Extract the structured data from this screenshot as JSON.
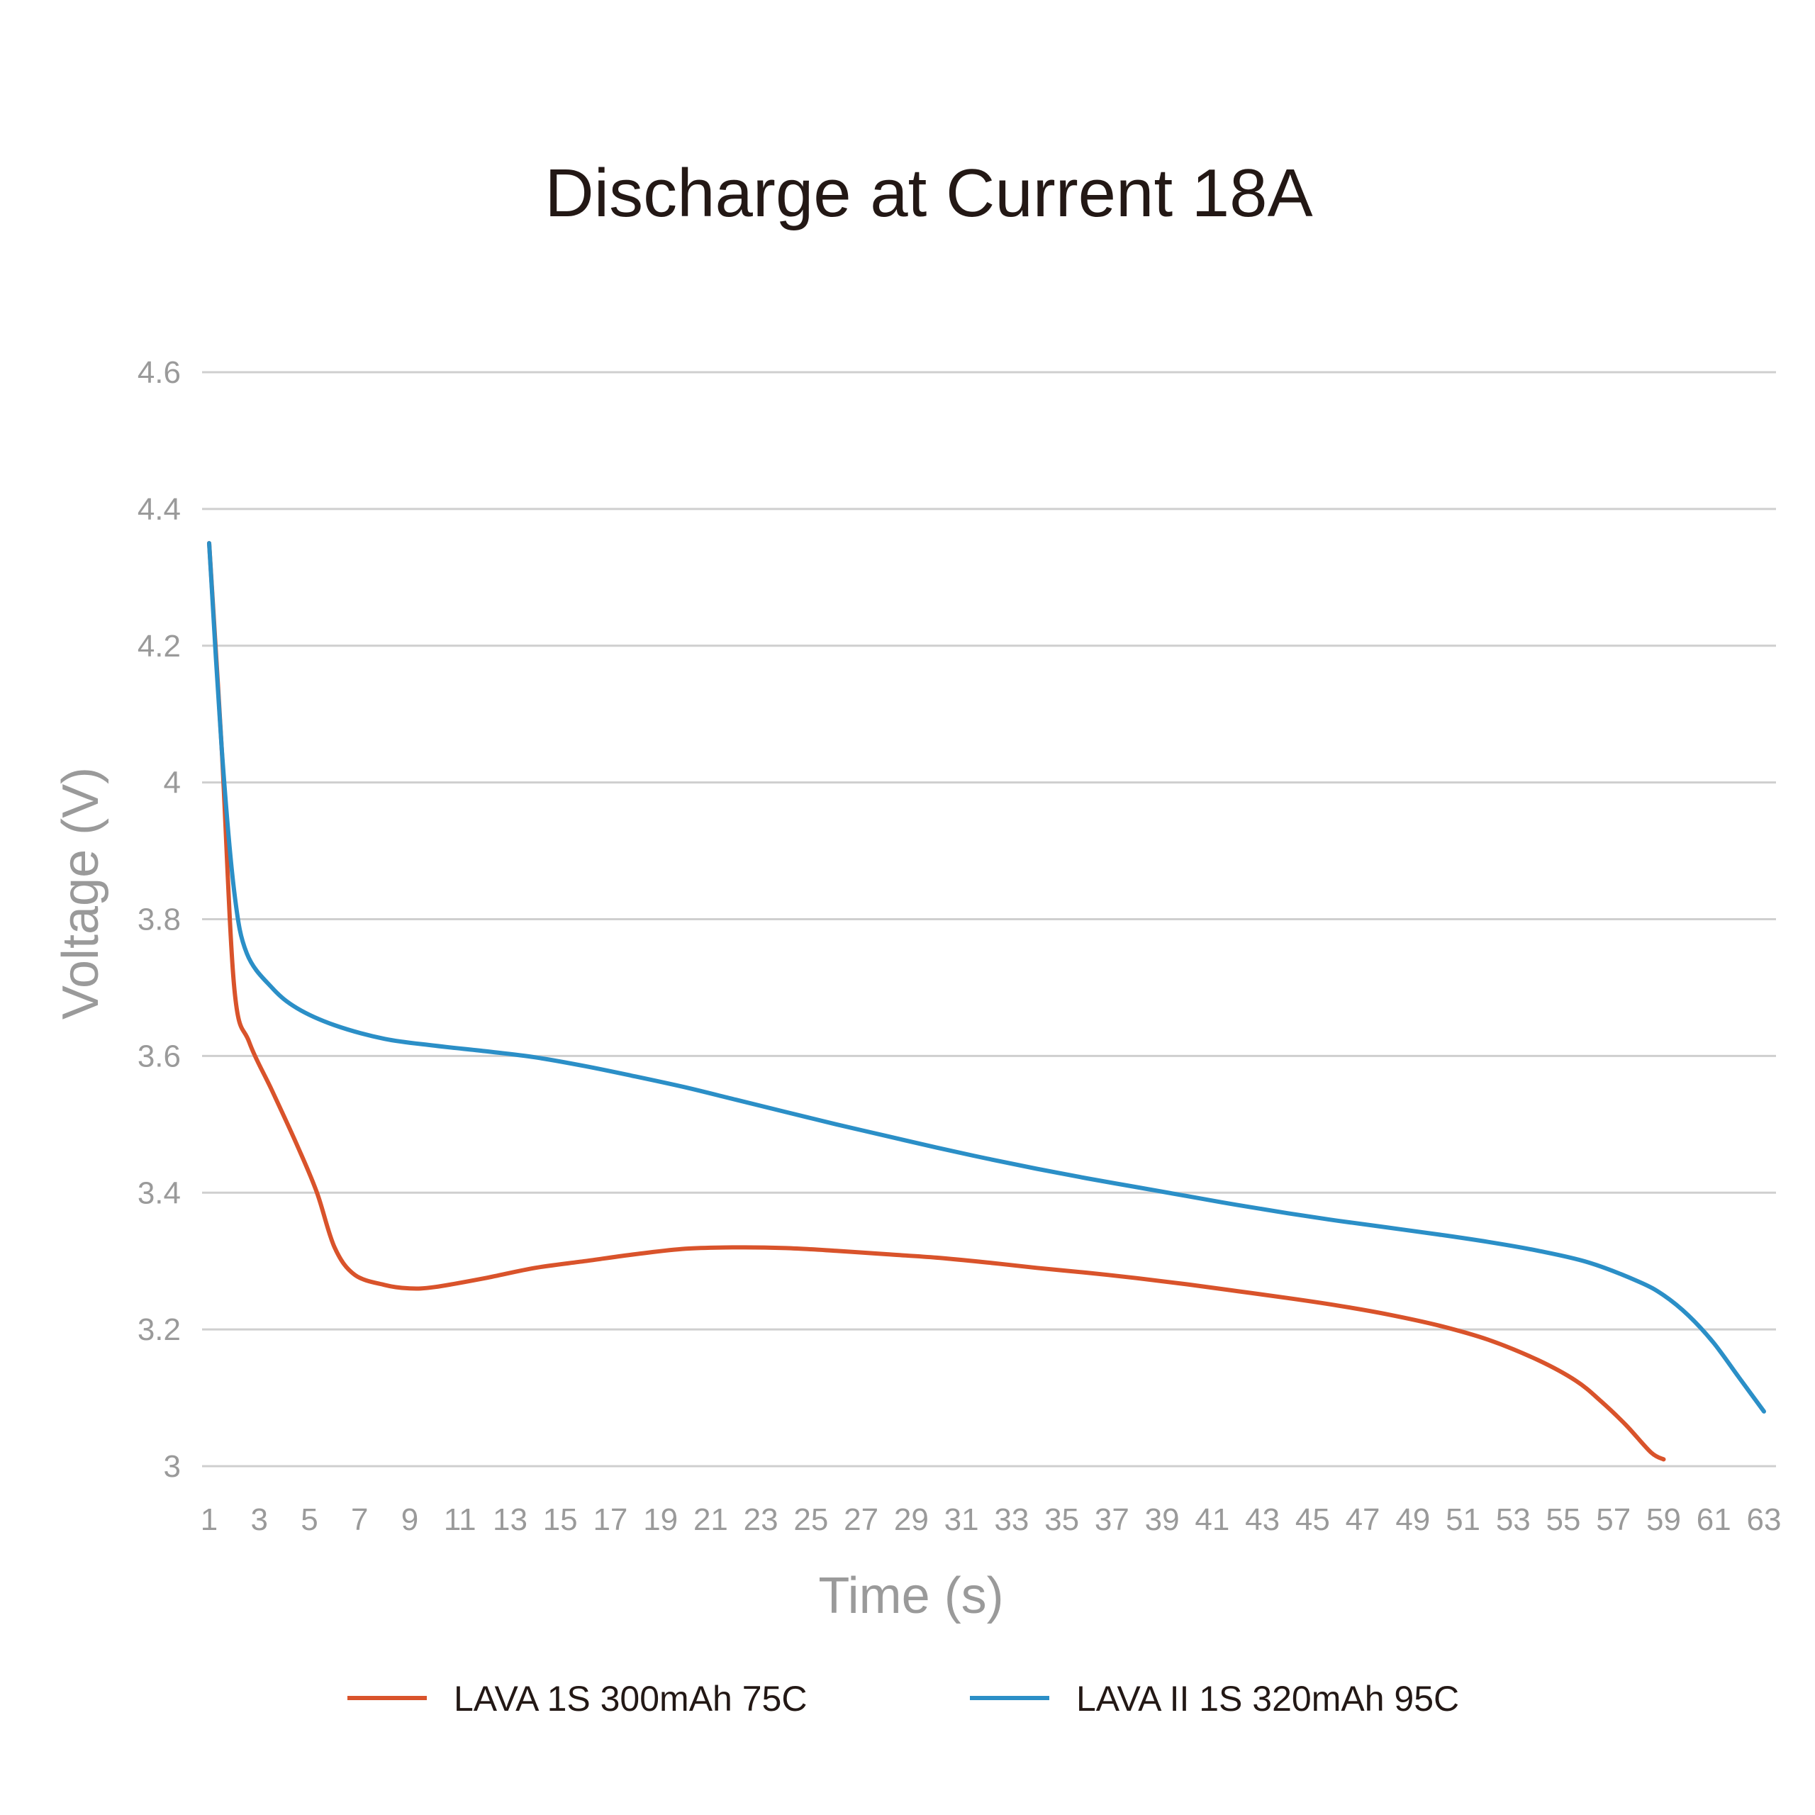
{
  "chart_data": {
    "type": "line",
    "title": "Discharge at Current 18A",
    "xlabel": "Time (s)",
    "ylabel": "Voltage (V)",
    "xlim": [
      1,
      63
    ],
    "ylim": [
      3,
      4.6
    ],
    "x_ticks": [
      "1",
      "3",
      "5",
      "7",
      "9",
      "11",
      "13",
      "15",
      "17",
      "19",
      "21",
      "23",
      "25",
      "27",
      "29",
      "31",
      "33",
      "35",
      "37",
      "39",
      "41",
      "43",
      "45",
      "47",
      "49",
      "51",
      "53",
      "55",
      "57",
      "59",
      "61",
      "63"
    ],
    "y_ticks": [
      "3",
      "3.2",
      "3.4",
      "3.6",
      "3.8",
      "4",
      "4.2",
      "4.4",
      "4.6"
    ],
    "grid": "horizontal",
    "legend_position": "bottom",
    "series": [
      {
        "name": "LAVA 1S 300mAh 75C",
        "color": "#d9532b",
        "points": [
          [
            1,
            4.35
          ],
          [
            1.5,
            4.05
          ],
          [
            2,
            3.7
          ],
          [
            2.6,
            3.62
          ],
          [
            3.5,
            3.55
          ],
          [
            4.5,
            3.47
          ],
          [
            5.3,
            3.4
          ],
          [
            6,
            3.32
          ],
          [
            6.8,
            3.28
          ],
          [
            8,
            3.265
          ],
          [
            9,
            3.26
          ],
          [
            10,
            3.262
          ],
          [
            12,
            3.275
          ],
          [
            14,
            3.29
          ],
          [
            16,
            3.3
          ],
          [
            18,
            3.31
          ],
          [
            20,
            3.318
          ],
          [
            22,
            3.32
          ],
          [
            24,
            3.319
          ],
          [
            26,
            3.315
          ],
          [
            28,
            3.31
          ],
          [
            30,
            3.305
          ],
          [
            32,
            3.298
          ],
          [
            34,
            3.29
          ],
          [
            36,
            3.283
          ],
          [
            38,
            3.275
          ],
          [
            40,
            3.266
          ],
          [
            42,
            3.256
          ],
          [
            44,
            3.246
          ],
          [
            46,
            3.235
          ],
          [
            48,
            3.222
          ],
          [
            50,
            3.206
          ],
          [
            52,
            3.185
          ],
          [
            54,
            3.155
          ],
          [
            55.5,
            3.125
          ],
          [
            56.5,
            3.095
          ],
          [
            57.5,
            3.06
          ],
          [
            58.5,
            3.02
          ],
          [
            59,
            3.01
          ]
        ]
      },
      {
        "name": "LAVA II 1S 320mAh 95C",
        "color": "#2b8fc7",
        "points": [
          [
            1,
            4.35
          ],
          [
            1.5,
            4.05
          ],
          [
            2,
            3.84
          ],
          [
            2.5,
            3.75
          ],
          [
            3.5,
            3.7
          ],
          [
            4.5,
            3.67
          ],
          [
            6,
            3.645
          ],
          [
            8,
            3.625
          ],
          [
            10,
            3.615
          ],
          [
            12,
            3.607
          ],
          [
            14,
            3.598
          ],
          [
            16,
            3.585
          ],
          [
            18,
            3.57
          ],
          [
            20,
            3.554
          ],
          [
            22,
            3.536
          ],
          [
            24,
            3.518
          ],
          [
            26,
            3.5
          ],
          [
            28,
            3.483
          ],
          [
            30,
            3.466
          ],
          [
            32,
            3.45
          ],
          [
            34,
            3.435
          ],
          [
            36,
            3.421
          ],
          [
            38,
            3.408
          ],
          [
            40,
            3.395
          ],
          [
            42,
            3.382
          ],
          [
            44,
            3.37
          ],
          [
            46,
            3.359
          ],
          [
            48,
            3.349
          ],
          [
            50,
            3.339
          ],
          [
            52,
            3.328
          ],
          [
            54,
            3.315
          ],
          [
            56,
            3.298
          ],
          [
            58,
            3.27
          ],
          [
            59,
            3.25
          ],
          [
            60,
            3.22
          ],
          [
            61,
            3.18
          ],
          [
            62,
            3.13
          ],
          [
            63,
            3.08
          ]
        ]
      }
    ]
  }
}
